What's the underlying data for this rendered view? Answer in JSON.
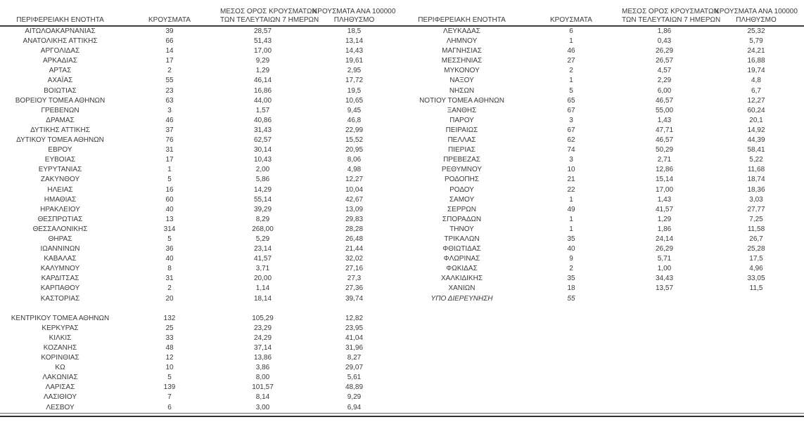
{
  "table": {
    "headers": [
      {
        "id": "region",
        "lines": [
          "ΠΕΡΙΦΕΡΕΙΑΚΗ ΕΝΟΤΗΤΑ"
        ]
      },
      {
        "id": "cases",
        "lines": [
          "ΚΡΟΥΣΜΑΤΑ"
        ]
      },
      {
        "id": "avg7",
        "lines": [
          "ΜΕΣΟΣ ΟΡΟΣ ΚΡΟΥΣΜΑΤΩΝ",
          "ΤΩΝ ΤΕΛΕΥΤΑΙΩΝ 7 ΗΜΕΡΩΝ"
        ]
      },
      {
        "id": "per100k",
        "lines": [
          "ΚΡΟΥΣΜΑΤΑ ΑΝΑ 100000",
          "ΠΛΗΘΥΣΜΟ"
        ]
      }
    ],
    "left_rows": [
      {
        "name": "ΑΙΤΩΛΟΑΚΑΡΝΑΝΙΑΣ",
        "cases": "39",
        "avg7": "28,57",
        "per100k": "18,5"
      },
      {
        "name": "ΑΝΑΤΟΛΙΚΗΣ ΑΤΤΙΚΗΣ",
        "cases": "66",
        "avg7": "51,43",
        "per100k": "13,14"
      },
      {
        "name": "ΑΡΓΟΛΙΔΑΣ",
        "cases": "14",
        "avg7": "17,00",
        "per100k": "14,43"
      },
      {
        "name": "ΑΡΚΑΔΙΑΣ",
        "cases": "17",
        "avg7": "9,29",
        "per100k": "19,61"
      },
      {
        "name": "ΑΡΤΑΣ",
        "cases": "2",
        "avg7": "1,29",
        "per100k": "2,95"
      },
      {
        "name": "ΑΧΑΪΑΣ",
        "cases": "55",
        "avg7": "46,14",
        "per100k": "17,72"
      },
      {
        "name": "ΒΟΙΩΤΙΑΣ",
        "cases": "23",
        "avg7": "16,86",
        "per100k": "19,5"
      },
      {
        "name": "ΒΟΡΕΙΟΥ ΤΟΜΕΑ ΑΘΗΝΩΝ",
        "cases": "63",
        "avg7": "44,00",
        "per100k": "10,65"
      },
      {
        "name": "ΓΡΕΒΕΝΩΝ",
        "cases": "3",
        "avg7": "1,57",
        "per100k": "9,45"
      },
      {
        "name": "ΔΡΑΜΑΣ",
        "cases": "46",
        "avg7": "40,86",
        "per100k": "46,8"
      },
      {
        "name": "ΔΥΤΙΚΗΣ ΑΤΤΙΚΗΣ",
        "cases": "37",
        "avg7": "31,43",
        "per100k": "22,99"
      },
      {
        "name": "ΔΥΤΙΚΟΥ ΤΟΜΕΑ ΑΘΗΝΩΝ",
        "cases": "76",
        "avg7": "62,57",
        "per100k": "15,52"
      },
      {
        "name": "ΕΒΡΟΥ",
        "cases": "31",
        "avg7": "30,14",
        "per100k": "20,95"
      },
      {
        "name": "ΕΥΒΟΙΑΣ",
        "cases": "17",
        "avg7": "10,43",
        "per100k": "8,06"
      },
      {
        "name": "ΕΥΡΥΤΑΝΙΑΣ",
        "cases": "1",
        "avg7": "2,00",
        "per100k": "4,98"
      },
      {
        "name": "ΖΑΚΥΝΘΟΥ",
        "cases": "5",
        "avg7": "5,86",
        "per100k": "12,27"
      },
      {
        "name": "ΗΛΕΙΑΣ",
        "cases": "16",
        "avg7": "14,29",
        "per100k": "10,04"
      },
      {
        "name": "ΗΜΑΘΙΑΣ",
        "cases": "60",
        "avg7": "55,14",
        "per100k": "42,67"
      },
      {
        "name": "ΗΡΑΚΛΕΙΟΥ",
        "cases": "40",
        "avg7": "39,29",
        "per100k": "13,09"
      },
      {
        "name": "ΘΕΣΠΡΩΤΙΑΣ",
        "cases": "13",
        "avg7": "8,29",
        "per100k": "29,83"
      },
      {
        "name": "ΘΕΣΣΑΛΟΝΙΚΗΣ",
        "cases": "314",
        "avg7": "268,00",
        "per100k": "28,28"
      },
      {
        "name": "ΘΗΡΑΣ",
        "cases": "5",
        "avg7": "5,29",
        "per100k": "26,48"
      },
      {
        "name": "ΙΩΑΝΝΙΝΩΝ",
        "cases": "36",
        "avg7": "23,14",
        "per100k": "21,44"
      },
      {
        "name": "ΚΑΒΑΛΑΣ",
        "cases": "40",
        "avg7": "41,57",
        "per100k": "32,02"
      },
      {
        "name": "ΚΑΛΥΜΝΟΥ",
        "cases": "8",
        "avg7": "3,71",
        "per100k": "27,16"
      },
      {
        "name": "ΚΑΡΔΙΤΣΑΣ",
        "cases": "31",
        "avg7": "20,00",
        "per100k": "27,3"
      },
      {
        "name": "ΚΑΡΠΑΘΟΥ",
        "cases": "2",
        "avg7": "1,14",
        "per100k": "27,36"
      },
      {
        "name": "ΚΑΣΤΟΡΙΑΣ",
        "cases": "20",
        "avg7": "18,14",
        "per100k": "39,74"
      },
      {
        "name": "",
        "cases": "",
        "avg7": "",
        "per100k": ""
      },
      {
        "name": "ΚΕΝΤΡΙΚΟΥ ΤΟΜΕΑ ΑΘΗΝΩΝ",
        "cases": "132",
        "avg7": "105,29",
        "per100k": "12,82"
      },
      {
        "name": "ΚΕΡΚΥΡΑΣ",
        "cases": "25",
        "avg7": "23,29",
        "per100k": "23,95"
      },
      {
        "name": "ΚΙΛΚΙΣ",
        "cases": "33",
        "avg7": "24,29",
        "per100k": "41,04"
      },
      {
        "name": "ΚΟΖΑΝΗΣ",
        "cases": "48",
        "avg7": "37,14",
        "per100k": "31,96"
      },
      {
        "name": "ΚΟΡΙΝΘΙΑΣ",
        "cases": "12",
        "avg7": "13,86",
        "per100k": "8,27"
      },
      {
        "name": "ΚΩ",
        "cases": "10",
        "avg7": "3,86",
        "per100k": "29,07"
      },
      {
        "name": "ΛΑΚΩΝΙΑΣ",
        "cases": "5",
        "avg7": "8,00",
        "per100k": "5,61"
      },
      {
        "name": "ΛΑΡΙΣΑΣ",
        "cases": "139",
        "avg7": "101,57",
        "per100k": "48,89"
      },
      {
        "name": "ΛΑΣΙΘΙΟΥ",
        "cases": "7",
        "avg7": "8,14",
        "per100k": "9,29"
      },
      {
        "name": "ΛΕΣΒΟΥ",
        "cases": "6",
        "avg7": "3,00",
        "per100k": "6,94"
      }
    ],
    "right_rows": [
      {
        "name": "ΛΕΥΚΑΔΑΣ",
        "cases": "6",
        "avg7": "1,86",
        "per100k": "25,32"
      },
      {
        "name": "ΛΗΜΝΟΥ",
        "cases": "1",
        "avg7": "0,43",
        "per100k": "5,79"
      },
      {
        "name": "ΜΑΓΝΗΣΙΑΣ",
        "cases": "46",
        "avg7": "26,29",
        "per100k": "24,21"
      },
      {
        "name": "ΜΕΣΣΗΝΙΑΣ",
        "cases": "27",
        "avg7": "26,57",
        "per100k": "16,88"
      },
      {
        "name": "ΜΥΚΟΝΟΥ",
        "cases": "2",
        "avg7": "4,57",
        "per100k": "19,74"
      },
      {
        "name": "ΝΑΞΟΥ",
        "cases": "1",
        "avg7": "2,29",
        "per100k": "4,8"
      },
      {
        "name": "ΝΗΣΩΝ",
        "cases": "5",
        "avg7": "6,00",
        "per100k": "6,7"
      },
      {
        "name": "ΝΟΤΙΟΥ ΤΟΜΕΑ ΑΘΗΝΩΝ",
        "cases": "65",
        "avg7": "46,57",
        "per100k": "12,27"
      },
      {
        "name": "ΞΑΝΘΗΣ",
        "cases": "67",
        "avg7": "55,00",
        "per100k": "60,24"
      },
      {
        "name": "ΠΑΡΟΥ",
        "cases": "3",
        "avg7": "1,43",
        "per100k": "20,1"
      },
      {
        "name": "ΠΕΙΡΑΙΩΣ",
        "cases": "67",
        "avg7": "47,71",
        "per100k": "14,92"
      },
      {
        "name": "ΠΕΛΛΑΣ",
        "cases": "62",
        "avg7": "46,57",
        "per100k": "44,39"
      },
      {
        "name": "ΠΙΕΡΙΑΣ",
        "cases": "74",
        "avg7": "50,29",
        "per100k": "58,41"
      },
      {
        "name": "ΠΡΕΒΕΖΑΣ",
        "cases": "3",
        "avg7": "2,71",
        "per100k": "5,22"
      },
      {
        "name": "ΡΕΘΥΜΝΟΥ",
        "cases": "10",
        "avg7": "12,86",
        "per100k": "11,68"
      },
      {
        "name": "ΡΟΔΟΠΗΣ",
        "cases": "21",
        "avg7": "15,14",
        "per100k": "18,74"
      },
      {
        "name": "ΡΟΔΟΥ",
        "cases": "22",
        "avg7": "17,00",
        "per100k": "18,36"
      },
      {
        "name": "ΣΑΜΟΥ",
        "cases": "1",
        "avg7": "1,43",
        "per100k": "3,03"
      },
      {
        "name": "ΣΕΡΡΩΝ",
        "cases": "49",
        "avg7": "41,57",
        "per100k": "27,77"
      },
      {
        "name": "ΣΠΟΡΑΔΩΝ",
        "cases": "1",
        "avg7": "1,29",
        "per100k": "7,25"
      },
      {
        "name": "ΤΗΝΟΥ",
        "cases": "1",
        "avg7": "1,86",
        "per100k": "11,58"
      },
      {
        "name": "ΤΡΙΚΑΛΩΝ",
        "cases": "35",
        "avg7": "24,14",
        "per100k": "26,7"
      },
      {
        "name": "ΦΘΙΩΤΙΔΑΣ",
        "cases": "40",
        "avg7": "26,29",
        "per100k": "25,28"
      },
      {
        "name": "ΦΛΩΡΙΝΑΣ",
        "cases": "9",
        "avg7": "5,71",
        "per100k": "17,5"
      },
      {
        "name": "ΦΩΚΙΔΑΣ",
        "cases": "2",
        "avg7": "1,00",
        "per100k": "4,96"
      },
      {
        "name": "ΧΑΛΚΙΔΙΚΗΣ",
        "cases": "35",
        "avg7": "34,43",
        "per100k": "33,05"
      },
      {
        "name": "ΧΑΝΙΩΝ",
        "cases": "18",
        "avg7": "13,57",
        "per100k": "11,5"
      },
      {
        "name": "ΥΠΟ ΔΙΕΡΕΥΝΗΣΗ",
        "cases": "55",
        "avg7": "",
        "per100k": "",
        "italic": true
      }
    ]
  }
}
